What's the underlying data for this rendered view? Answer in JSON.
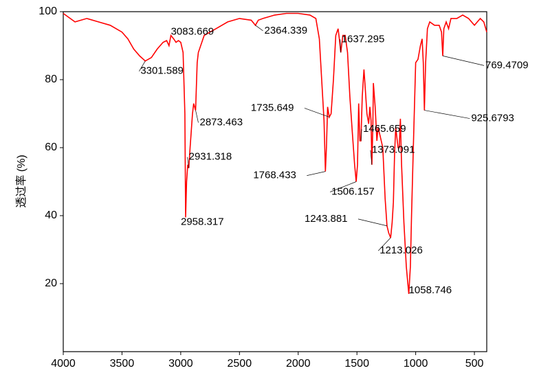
{
  "chart_data": {
    "type": "line",
    "y_label": "透过率 (%)",
    "color": "#ff0000",
    "xlim": [
      4000,
      395
    ],
    "ylim": [
      0,
      100
    ],
    "xticks": [
      4000,
      3500,
      3000,
      2500,
      2000,
      1500,
      1000,
      500
    ],
    "yticks": [
      20,
      40,
      60,
      80,
      100
    ],
    "x": [
      4000,
      3900,
      3800,
      3700,
      3600,
      3500,
      3450,
      3400,
      3350,
      3301.6,
      3250,
      3200,
      3150,
      3120,
      3100,
      3083.7,
      3060,
      3040,
      3020,
      3000,
      2980,
      2965,
      2958.3,
      2950,
      2940,
      2931.3,
      2920,
      2900,
      2890,
      2873.5,
      2860,
      2850,
      2800,
      2700,
      2600,
      2500,
      2400,
      2364.3,
      2340,
      2300,
      2200,
      2100,
      2000,
      1900,
      1850,
      1820,
      1800,
      1780,
      1768.4,
      1760,
      1750,
      1735.6,
      1720,
      1700,
      1680,
      1660,
      1650,
      1637.3,
      1620,
      1600,
      1580,
      1560,
      1540,
      1520,
      1506.2,
      1495,
      1485,
      1475,
      1465.7,
      1455,
      1440,
      1430,
      1415,
      1400,
      1390,
      1380,
      1373.1,
      1365,
      1360,
      1345,
      1330,
      1320,
      1300,
      1280,
      1260,
      1243.9,
      1230,
      1213,
      1200,
      1190,
      1180,
      1170,
      1150,
      1140,
      1130,
      1120,
      1100,
      1080,
      1058.7,
      1045,
      1035,
      1020,
      1000,
      980,
      960,
      945,
      935,
      925.7,
      915,
      900,
      880,
      860,
      840,
      800,
      780,
      769.5,
      760,
      740,
      720,
      700,
      650,
      600,
      550,
      500,
      450,
      420,
      395
    ],
    "values": [
      99.5,
      97,
      98,
      97,
      96,
      94,
      92,
      89,
      87,
      85.5,
      86.5,
      89,
      91,
      91.5,
      90,
      93,
      92,
      91,
      91.5,
      91,
      88,
      70,
      39.5,
      50,
      55,
      54,
      60,
      70,
      73,
      71,
      85,
      88,
      93,
      95,
      97,
      98,
      97.5,
      96,
      97.5,
      98,
      99,
      99.5,
      99.5,
      99,
      98,
      92,
      80,
      68,
      53,
      60,
      72,
      69,
      70,
      80,
      93,
      95,
      92,
      88,
      93,
      93,
      88,
      75,
      65,
      55,
      50,
      55,
      73,
      62,
      62,
      75,
      83,
      78,
      70,
      67,
      72,
      68,
      55,
      66,
      79,
      72,
      62,
      66,
      63,
      60,
      45,
      37,
      35,
      33.5,
      38,
      44,
      58,
      66,
      60,
      60,
      68.5,
      55,
      38,
      25,
      17,
      25,
      40,
      60,
      85,
      86,
      90,
      92,
      85,
      71,
      85,
      95,
      97,
      96.5,
      96,
      96,
      94,
      87,
      95,
      97,
      95,
      98,
      98,
      99,
      98,
      96,
      98,
      97,
      94
    ],
    "annotations": [
      {
        "label": "3301.589",
        "x": 3301.589,
        "y": 85.5
      },
      {
        "label": "3083.669",
        "x": 3083.669,
        "y": 93
      },
      {
        "label": "2958.317",
        "x": 2958.317,
        "y": 39.5
      },
      {
        "label": "2931.318",
        "x": 2931.318,
        "y": 54
      },
      {
        "label": "2873.463",
        "x": 2873.463,
        "y": 71
      },
      {
        "label": "2364.339",
        "x": 2364.339,
        "y": 96
      },
      {
        "label": "1768.433",
        "x": 1768.433,
        "y": 53
      },
      {
        "label": "1735.649",
        "x": 1735.649,
        "y": 69
      },
      {
        "label": "1637.295",
        "x": 1637.295,
        "y": 88
      },
      {
        "label": "1506.157",
        "x": 1506.157,
        "y": 50
      },
      {
        "label": "1465.659",
        "x": 1465.659,
        "y": 62
      },
      {
        "label": "1373.091",
        "x": 1373.091,
        "y": 55
      },
      {
        "label": "1243.881",
        "x": 1243.881,
        "y": 37
      },
      {
        "label": "1213.026",
        "x": 1213.026,
        "y": 33.5
      },
      {
        "label": "1058.746",
        "x": 1058.746,
        "y": 17
      },
      {
        "label": "925.6793",
        "x": 925.6793,
        "y": 71
      },
      {
        "label": "769.4709",
        "x": 769.4709,
        "y": 87
      }
    ]
  }
}
